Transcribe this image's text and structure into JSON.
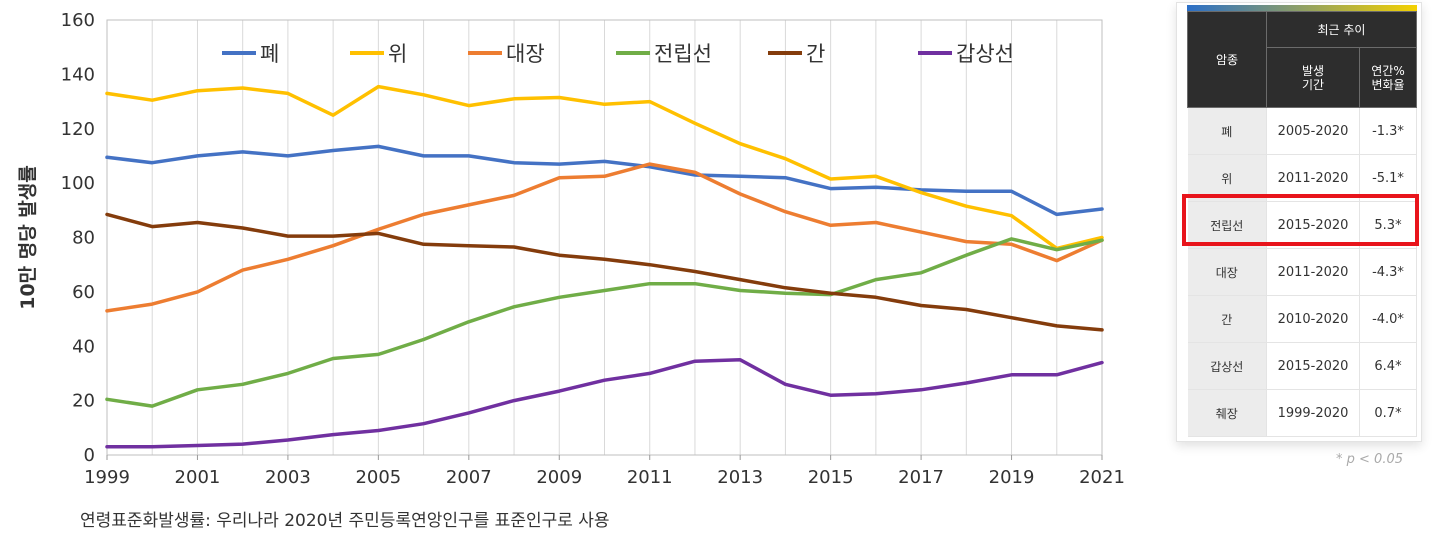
{
  "chart_data": {
    "type": "line",
    "ylabel": "10만 명당 발생률",
    "xlabel": "",
    "ylim": [
      0,
      160
    ],
    "yticks": [
      "0",
      "20",
      "40",
      "60",
      "80",
      "100",
      "120",
      "140",
      "160"
    ],
    "xlim": [
      1999,
      2021
    ],
    "xticks": [
      "1999",
      "2001",
      "2003",
      "2005",
      "2007",
      "2009",
      "2011",
      "2013",
      "2015",
      "2017",
      "2019",
      "2021"
    ],
    "grid": "vertical",
    "legend_position": "top",
    "x": [
      1999,
      2000,
      2001,
      2002,
      2003,
      2004,
      2005,
      2006,
      2007,
      2008,
      2009,
      2010,
      2011,
      2012,
      2013,
      2014,
      2015,
      2016,
      2017,
      2018,
      2019,
      2020,
      2021
    ],
    "series": [
      {
        "name": "폐",
        "color": "#4472c4",
        "values": [
          109.5,
          107.5,
          110,
          111.5,
          110,
          112,
          113.5,
          110,
          110,
          107.5,
          107,
          108,
          106,
          103,
          102.5,
          102,
          98,
          98.5,
          97.5,
          97,
          97,
          88.5,
          90.5
        ]
      },
      {
        "name": "위",
        "color": "#ffc000",
        "values": [
          133,
          130.5,
          134,
          135,
          133,
          125,
          135.5,
          132.5,
          128.5,
          131,
          131.5,
          129,
          130,
          122,
          114.5,
          109,
          101.5,
          102.5,
          96.5,
          91.5,
          88,
          76,
          80
        ]
      },
      {
        "name": "대장",
        "color": "#ed7d31",
        "values": [
          53,
          55.5,
          60,
          68,
          72,
          77,
          83,
          88.5,
          92,
          95.5,
          102,
          102.5,
          107,
          104,
          96,
          89.5,
          84.5,
          85.5,
          82,
          78.5,
          77.5,
          71.5,
          79
        ]
      },
      {
        "name": "전립선",
        "color": "#70ad47",
        "values": [
          20.5,
          18,
          24,
          26,
          30,
          35.5,
          37,
          42.5,
          49,
          54.5,
          58,
          60.5,
          63,
          63,
          60.5,
          59.5,
          59,
          64.5,
          67,
          73.5,
          79.5,
          75.5,
          79
        ]
      },
      {
        "name": "간",
        "color": "#843c0c",
        "values": [
          88.5,
          84,
          85.5,
          83.5,
          80.5,
          80.5,
          81.5,
          77.5,
          77,
          76.5,
          73.5,
          72,
          70,
          67.5,
          64.5,
          61.5,
          59.5,
          58,
          55,
          53.5,
          50.5,
          47.5,
          46
        ]
      },
      {
        "name": "갑상선",
        "color": "#7030a0",
        "values": [
          3,
          3,
          3.5,
          4,
          5.5,
          7.5,
          9,
          11.5,
          15.5,
          20,
          23.5,
          27.5,
          30,
          34.5,
          35,
          26,
          22,
          22.5,
          24,
          26.5,
          29.5,
          29.5,
          34
        ]
      }
    ]
  },
  "note": "연령표준화발생률: 우리나라 2020년 주민등록연앙인구를 표준인구로 사용",
  "trend_table": {
    "header_cancer": "암종",
    "header_trend": "최근 추이",
    "header_period": "발생\n기간",
    "header_apc": "연간%\n변화율",
    "rows": [
      {
        "cancer": "폐",
        "period": "2005-2020",
        "apc": "-1.3*"
      },
      {
        "cancer": "위",
        "period": "2011-2020",
        "apc": "-5.1*"
      },
      {
        "cancer": "전립선",
        "period": "2015-2020",
        "apc": "5.3*"
      },
      {
        "cancer": "대장",
        "period": "2011-2020",
        "apc": "-4.3*"
      },
      {
        "cancer": "간",
        "period": "2010-2020",
        "apc": "-4.0*"
      },
      {
        "cancer": "갑상선",
        "period": "2015-2020",
        "apc": "6.4*"
      },
      {
        "cancer": "췌장",
        "period": "1999-2020",
        "apc": "0.7*"
      }
    ],
    "highlight_color": "#e8141b",
    "footnote": "* p < 0.05"
  }
}
